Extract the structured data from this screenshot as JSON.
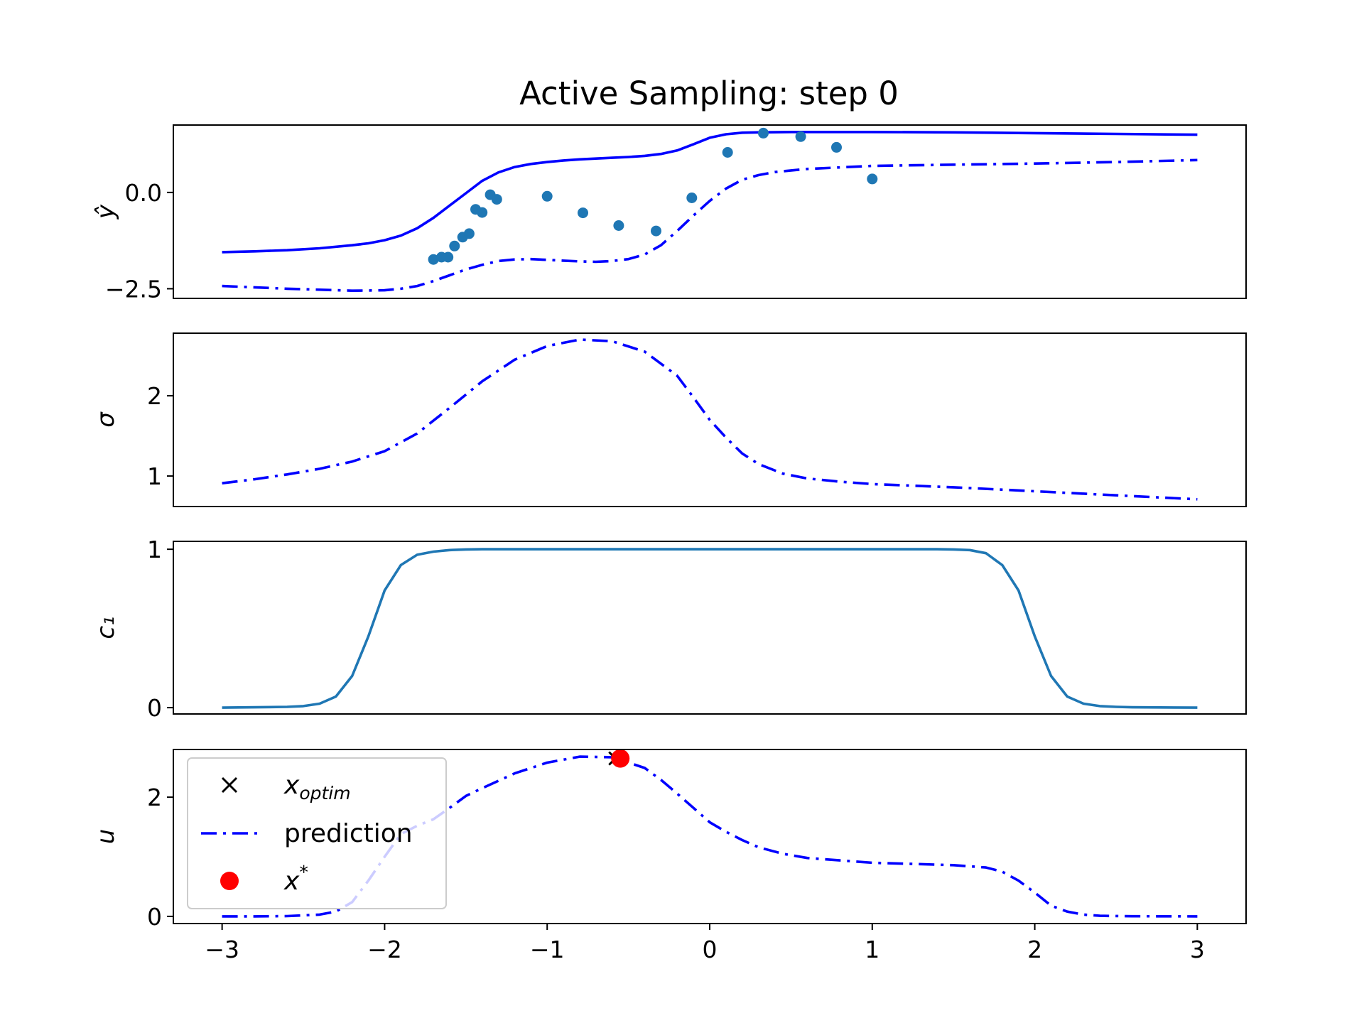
{
  "chart_data": {
    "title": "Active Sampling: step 0",
    "xlim": [
      -3.3,
      3.3
    ],
    "xticks": [
      -3,
      -2,
      -1,
      0,
      1,
      2,
      3
    ],
    "xtick_labels": [
      "−3",
      "−2",
      "−1",
      "0",
      "1",
      "2",
      "3"
    ],
    "colors": {
      "prediction": "#0000ff",
      "observations": "#1f77b4",
      "c1": "#1f77b4",
      "x_star": "#ff0000",
      "x_optim": "#000000"
    },
    "panels": [
      {
        "id": "yhat",
        "type": "line",
        "ylabel": "ŷ",
        "ylim": [
          -2.75,
          1.75
        ],
        "yticks": [
          0.0,
          -2.5
        ],
        "ytick_labels": [
          "0.0",
          "−2.5"
        ],
        "series": [
          {
            "style": "solid",
            "x": [
              -3.0,
              -2.8,
              -2.6,
              -2.4,
              -2.2,
              -2.1,
              -2.0,
              -1.9,
              -1.8,
              -1.7,
              -1.6,
              -1.5,
              -1.4,
              -1.3,
              -1.2,
              -1.1,
              -1.0,
              -0.9,
              -0.8,
              -0.7,
              -0.6,
              -0.5,
              -0.4,
              -0.3,
              -0.2,
              -0.1,
              0.0,
              0.1,
              0.2,
              0.3,
              0.5,
              1.0,
              1.5,
              2.0,
              2.5,
              3.0
            ],
            "y": [
              -1.55,
              -1.53,
              -1.5,
              -1.45,
              -1.37,
              -1.32,
              -1.24,
              -1.12,
              -0.93,
              -0.66,
              -0.34,
              -0.02,
              0.3,
              0.52,
              0.66,
              0.74,
              0.79,
              0.83,
              0.86,
              0.88,
              0.9,
              0.92,
              0.95,
              1.0,
              1.09,
              1.25,
              1.42,
              1.51,
              1.55,
              1.56,
              1.57,
              1.57,
              1.56,
              1.54,
              1.52,
              1.5
            ]
          },
          {
            "style": "dashdot",
            "x": [
              -3.0,
              -2.6,
              -2.2,
              -2.0,
              -1.9,
              -1.8,
              -1.7,
              -1.6,
              -1.5,
              -1.4,
              -1.3,
              -1.2,
              -1.1,
              -1.0,
              -0.9,
              -0.8,
              -0.7,
              -0.6,
              -0.5,
              -0.4,
              -0.3,
              -0.2,
              -0.1,
              0.0,
              0.1,
              0.2,
              0.3,
              0.4,
              0.6,
              1.0,
              1.5,
              2.0,
              2.5,
              3.0
            ],
            "y": [
              -2.43,
              -2.5,
              -2.55,
              -2.54,
              -2.5,
              -2.43,
              -2.3,
              -2.15,
              -2.0,
              -1.88,
              -1.78,
              -1.74,
              -1.73,
              -1.75,
              -1.77,
              -1.79,
              -1.8,
              -1.78,
              -1.73,
              -1.61,
              -1.37,
              -1.0,
              -0.6,
              -0.22,
              0.1,
              0.33,
              0.45,
              0.53,
              0.61,
              0.69,
              0.72,
              0.75,
              0.79,
              0.84
            ]
          }
        ],
        "scatter": {
          "x": [
            -1.7,
            -1.65,
            -1.61,
            -1.57,
            -1.52,
            -1.48,
            -1.44,
            -1.4,
            -1.35,
            -1.31,
            -1.0,
            -0.78,
            -0.56,
            -0.33,
            -0.11,
            0.11,
            0.33,
            0.56,
            0.78,
            1.0
          ],
          "y": [
            -1.74,
            -1.68,
            -1.68,
            -1.39,
            -1.16,
            -1.07,
            -0.44,
            -0.52,
            -0.06,
            -0.18,
            -0.1,
            -0.53,
            -0.86,
            -1.0,
            -0.14,
            1.04,
            1.54,
            1.45,
            1.17,
            0.35
          ]
        }
      },
      {
        "id": "sigma",
        "type": "line",
        "ylabel": "σ",
        "ylim": [
          0.62,
          2.78
        ],
        "yticks": [
          1,
          2
        ],
        "ytick_labels": [
          "1",
          "2"
        ],
        "series": [
          {
            "style": "dashdot",
            "x": [
              -3.0,
              -2.8,
              -2.6,
              -2.4,
              -2.2,
              -2.0,
              -1.8,
              -1.6,
              -1.4,
              -1.2,
              -1.0,
              -0.8,
              -0.6,
              -0.4,
              -0.2,
              -0.1,
              0.0,
              0.1,
              0.2,
              0.3,
              0.45,
              0.6,
              0.8,
              1.0,
              1.5,
              2.0,
              2.5,
              3.0
            ],
            "y": [
              0.91,
              0.96,
              1.02,
              1.09,
              1.18,
              1.31,
              1.53,
              1.85,
              2.18,
              2.45,
              2.62,
              2.7,
              2.68,
              2.55,
              2.25,
              1.98,
              1.7,
              1.48,
              1.28,
              1.15,
              1.03,
              0.97,
              0.93,
              0.9,
              0.86,
              0.81,
              0.76,
              0.71
            ]
          }
        ]
      },
      {
        "id": "c1",
        "type": "line",
        "ylabel": "c₁",
        "ylim": [
          -0.04,
          1.05
        ],
        "yticks": [
          0,
          1
        ],
        "ytick_labels": [
          "0",
          "1"
        ],
        "series": [
          {
            "style": "solid",
            "x": [
              -3.0,
              -2.6,
              -2.5,
              -2.4,
              -2.3,
              -2.2,
              -2.1,
              -2.0,
              -1.9,
              -1.8,
              -1.7,
              -1.6,
              -1.5,
              -1.4,
              -1.2,
              -1.0,
              0.0,
              1.0,
              1.4,
              1.5,
              1.6,
              1.7,
              1.8,
              1.9,
              2.0,
              2.1,
              2.2,
              2.3,
              2.4,
              2.5,
              2.6,
              3.0
            ],
            "y": [
              0.0,
              0.005,
              0.01,
              0.025,
              0.07,
              0.2,
              0.45,
              0.74,
              0.9,
              0.965,
              0.985,
              0.995,
              0.999,
              1.0,
              1.0,
              1.0,
              1.0,
              1.0,
              1.0,
              0.999,
              0.995,
              0.975,
              0.9,
              0.74,
              0.45,
              0.2,
              0.07,
              0.025,
              0.01,
              0.005,
              0.002,
              0.0
            ]
          }
        ]
      },
      {
        "id": "u",
        "type": "line",
        "ylabel": "u",
        "ylim": [
          -0.12,
          2.8
        ],
        "yticks": [
          0,
          2
        ],
        "ytick_labels": [
          "0",
          "2"
        ],
        "series": [
          {
            "style": "dashdot",
            "x": [
              -3.0,
              -2.8,
              -2.6,
              -2.4,
              -2.3,
              -2.2,
              -2.1,
              -2.0,
              -1.9,
              -1.8,
              -1.7,
              -1.6,
              -1.5,
              -1.4,
              -1.2,
              -1.0,
              -0.8,
              -0.6,
              -0.4,
              -0.3,
              -0.2,
              -0.1,
              0.0,
              0.1,
              0.2,
              0.3,
              0.45,
              0.6,
              0.8,
              1.0,
              1.5,
              1.7,
              1.8,
              1.9,
              2.0,
              2.1,
              2.2,
              2.3,
              2.4,
              2.6,
              3.0
            ],
            "y": [
              0.0,
              0.0,
              0.005,
              0.03,
              0.08,
              0.24,
              0.6,
              1.0,
              1.38,
              1.52,
              1.63,
              1.82,
              2.02,
              2.15,
              2.4,
              2.58,
              2.68,
              2.67,
              2.49,
              2.29,
              2.06,
              1.82,
              1.58,
              1.42,
              1.28,
              1.16,
              1.05,
              0.98,
              0.94,
              0.9,
              0.86,
              0.82,
              0.75,
              0.6,
              0.4,
              0.18,
              0.08,
              0.03,
              0.01,
              0.003,
              0.0
            ]
          }
        ],
        "x_optim": {
          "x": -0.58,
          "y": 2.65
        },
        "x_star": {
          "x": -0.55,
          "y": 2.65
        }
      }
    ],
    "legend": {
      "placement": "upper-left of bottom panel",
      "entries": [
        {
          "label": "x_optim",
          "marker": "x",
          "color": "#000000"
        },
        {
          "label": "prediction",
          "marker": "dashdot-line",
          "color": "#0000ff"
        },
        {
          "label": "x*",
          "marker": "dot",
          "color": "#ff0000"
        }
      ]
    }
  }
}
